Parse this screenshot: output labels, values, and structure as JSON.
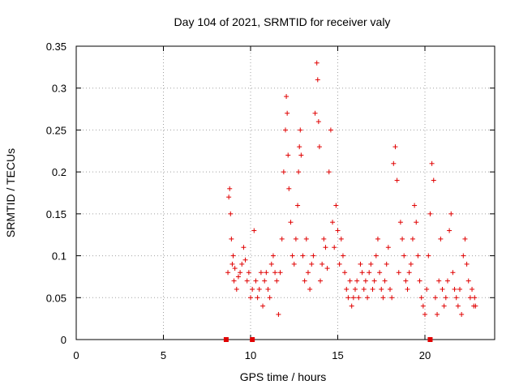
{
  "chart_data": {
    "type": "scatter",
    "title": "Day 104 of 2021, SRMTID for receiver valy",
    "xlabel": "GPS time / hours",
    "ylabel": "SRMTID / TECUs",
    "xlim": [
      0,
      24
    ],
    "ylim": [
      0,
      0.35
    ],
    "xticks": [
      0,
      5,
      10,
      15,
      20
    ],
    "xtick_labels": [
      "0",
      "5",
      "10",
      "15",
      "20"
    ],
    "yticks": [
      0,
      0.05,
      0.1,
      0.15,
      0.2,
      0.25,
      0.3,
      0.35
    ],
    "ytick_labels": [
      "0",
      "0.05",
      "0.1",
      "0.15",
      "0.2",
      "0.25",
      "0.3",
      "0.35"
    ],
    "grid": true,
    "marker": "+",
    "color": "#e00000",
    "series": [
      {
        "name": "SRMTID",
        "x": [
          8.7,
          8.75,
          8.8,
          8.85,
          8.9,
          8.95,
          9.0,
          9.05,
          9.1,
          9.2,
          9.3,
          9.4,
          9.5,
          9.6,
          9.7,
          9.8,
          9.9,
          10.0,
          10.1,
          10.2,
          10.3,
          10.4,
          10.5,
          10.6,
          10.7,
          10.8,
          10.9,
          11.0,
          11.1,
          11.2,
          11.3,
          11.4,
          11.5,
          11.6,
          11.7,
          11.8,
          11.9,
          12.0,
          12.05,
          12.1,
          12.15,
          12.2,
          12.3,
          12.4,
          12.5,
          12.6,
          12.7,
          12.75,
          12.8,
          12.85,
          12.9,
          13.0,
          13.1,
          13.2,
          13.3,
          13.4,
          13.5,
          13.6,
          13.7,
          13.8,
          13.85,
          13.9,
          13.95,
          14.0,
          14.1,
          14.2,
          14.3,
          14.4,
          14.5,
          14.6,
          14.7,
          14.8,
          14.9,
          15.0,
          15.1,
          15.2,
          15.3,
          15.4,
          15.5,
          15.6,
          15.7,
          15.8,
          15.9,
          16.0,
          16.1,
          16.2,
          16.3,
          16.4,
          16.5,
          16.6,
          16.7,
          16.8,
          16.9,
          17.0,
          17.1,
          17.2,
          17.3,
          17.4,
          17.5,
          17.6,
          17.7,
          17.8,
          17.9,
          18.0,
          18.1,
          18.2,
          18.3,
          18.4,
          18.5,
          18.6,
          18.7,
          18.8,
          18.9,
          19.0,
          19.1,
          19.2,
          19.3,
          19.4,
          19.5,
          19.6,
          19.7,
          19.8,
          19.9,
          20.0,
          20.1,
          20.2,
          20.3,
          20.4,
          20.5,
          20.6,
          20.7,
          20.8,
          20.9,
          21.0,
          21.1,
          21.2,
          21.3,
          21.4,
          21.5,
          21.6,
          21.7,
          21.8,
          21.9,
          22.0,
          22.1,
          22.2,
          22.3,
          22.4,
          22.5,
          22.6,
          22.7,
          22.8,
          22.85,
          22.9
        ],
        "y": [
          0.08,
          0.17,
          0.18,
          0.15,
          0.12,
          0.09,
          0.1,
          0.07,
          0.085,
          0.06,
          0.075,
          0.08,
          0.09,
          0.11,
          0.095,
          0.07,
          0.08,
          0.05,
          0.06,
          0.13,
          0.07,
          0.05,
          0.06,
          0.08,
          0.04,
          0.07,
          0.08,
          0.06,
          0.05,
          0.09,
          0.1,
          0.08,
          0.07,
          0.03,
          0.08,
          0.12,
          0.2,
          0.25,
          0.29,
          0.27,
          0.22,
          0.18,
          0.14,
          0.1,
          0.09,
          0.12,
          0.16,
          0.2,
          0.23,
          0.25,
          0.22,
          0.1,
          0.07,
          0.12,
          0.08,
          0.06,
          0.09,
          0.1,
          0.27,
          0.33,
          0.31,
          0.26,
          0.23,
          0.07,
          0.09,
          0.12,
          0.11,
          0.085,
          0.2,
          0.25,
          0.14,
          0.11,
          0.16,
          0.13,
          0.09,
          0.12,
          0.1,
          0.08,
          0.06,
          0.05,
          0.07,
          0.04,
          0.05,
          0.06,
          0.07,
          0.05,
          0.09,
          0.08,
          0.06,
          0.07,
          0.05,
          0.08,
          0.09,
          0.06,
          0.07,
          0.1,
          0.12,
          0.08,
          0.06,
          0.05,
          0.07,
          0.09,
          0.11,
          0.06,
          0.05,
          0.21,
          0.23,
          0.19,
          0.08,
          0.14,
          0.12,
          0.1,
          0.07,
          0.06,
          0.08,
          0.09,
          0.12,
          0.16,
          0.14,
          0.1,
          0.07,
          0.05,
          0.04,
          0.03,
          0.06,
          0.1,
          0.15,
          0.21,
          0.19,
          0.05,
          0.03,
          0.07,
          0.12,
          0.06,
          0.04,
          0.05,
          0.07,
          0.13,
          0.15,
          0.08,
          0.06,
          0.05,
          0.04,
          0.06,
          0.03,
          0.1,
          0.12,
          0.09,
          0.07,
          0.05,
          0.06,
          0.04,
          0.05,
          0.04
        ]
      }
    ],
    "highlight_markers_x": [
      8.6,
      10.1,
      20.3
    ]
  }
}
